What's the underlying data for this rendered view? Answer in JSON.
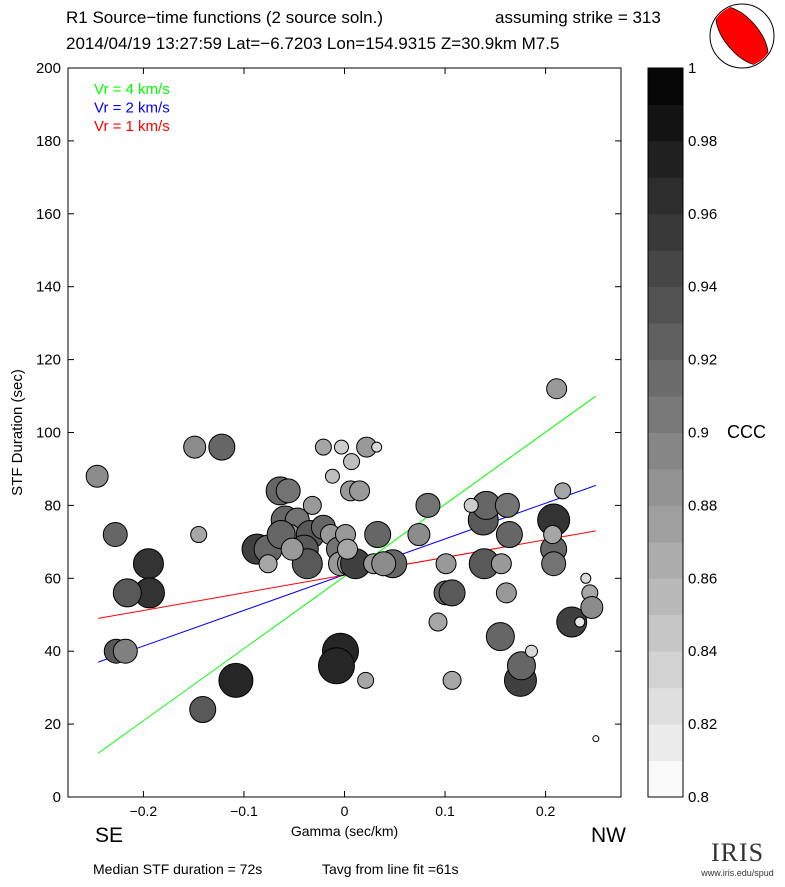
{
  "header": {
    "title": "R1 Source−time functions (2 source soln.)",
    "subtitle": "2014/04/19 13:27:59  Lat=−6.7203 Lon=154.9315  Z=30.9km  M7.5",
    "strike_text": "assuming strike = 313"
  },
  "footer": {
    "median": "Median STF duration = 72s",
    "tavg": "Tavg from line fit =61s",
    "logo_text": "IRIS",
    "logo_url": "www.iris.edu/spud"
  },
  "direction_labels": {
    "left": "SE",
    "right": "NW"
  },
  "colors": {
    "green": "#00ff00",
    "blue": "#0000ff",
    "red": "#ff0000",
    "beachball": "#ff0000"
  },
  "chart_data": {
    "type": "scatter",
    "xlabel": "Gamma (sec/km)",
    "ylabel": "STF Duration (sec)",
    "xlim": [
      -0.275,
      0.275
    ],
    "ylim": [
      0,
      200
    ],
    "xticks": [
      -0.2,
      -0.1,
      0,
      0.1,
      0.2
    ],
    "xtick_labels": [
      "−0.2",
      "−0.1",
      "0",
      "0.1",
      "0.2"
    ],
    "yticks": [
      0,
      20,
      40,
      60,
      80,
      100,
      120,
      140,
      160,
      180,
      200
    ],
    "ytick_labels": [
      "0",
      "20",
      "40",
      "60",
      "80",
      "100",
      "120",
      "140",
      "160",
      "180",
      "200"
    ],
    "legend": [
      {
        "label": "Vr = 4 km/s",
        "color": "#00ff00"
      },
      {
        "label": "Vr = 2 km/s",
        "color": "#0000ff"
      },
      {
        "label": "Vr = 1 km/s",
        "color": "#ff0000"
      }
    ],
    "legend_position": "top-left",
    "lines": [
      {
        "name": "Vr = 4 km/s",
        "color": "#00ff00",
        "x": [
          -0.245,
          0.25
        ],
        "y": [
          12,
          110
        ]
      },
      {
        "name": "Vr = 2 km/s",
        "color": "#0000ff",
        "x": [
          -0.245,
          0.25
        ],
        "y": [
          37,
          85.5
        ]
      },
      {
        "name": "Vr = 1 km/s",
        "color": "#ff0000",
        "x": [
          -0.245,
          0.25
        ],
        "y": [
          49,
          73
        ]
      }
    ],
    "colorbar": {
      "label": "CCC",
      "range": [
        0.8,
        1
      ],
      "ticks": [
        "0.8",
        "0.82",
        "0.84",
        "0.86",
        "0.88",
        "0.9",
        "0.92",
        "0.94",
        "0.96",
        "0.98",
        "1"
      ],
      "steps": 20
    },
    "points_fields": [
      "gamma",
      "duration",
      "ccc",
      "marker_size"
    ],
    "points": [
      [
        -0.246,
        88,
        0.89,
        11
      ],
      [
        -0.149,
        96,
        0.89,
        11
      ],
      [
        -0.122,
        96,
        0.92,
        13
      ],
      [
        -0.228,
        72,
        0.92,
        12
      ],
      [
        -0.145,
        72,
        0.87,
        8
      ],
      [
        -0.195,
        64,
        0.96,
        15
      ],
      [
        -0.194,
        56,
        0.96,
        15
      ],
      [
        -0.216,
        56,
        0.93,
        14
      ],
      [
        -0.227,
        40,
        0.93,
        12
      ],
      [
        -0.218,
        40,
        0.9,
        12
      ],
      [
        -0.141,
        24,
        0.93,
        13
      ],
      [
        -0.108,
        32,
        0.97,
        17
      ],
      [
        -0.004,
        40,
        0.97,
        18
      ],
      [
        -0.008,
        36,
        0.97,
        18
      ],
      [
        0.021,
        32,
        0.87,
        8
      ],
      [
        -0.064,
        84,
        0.92,
        14
      ],
      [
        -0.056,
        84,
        0.91,
        12
      ],
      [
        -0.032,
        80,
        0.88,
        9
      ],
      [
        -0.087,
        68,
        0.95,
        15
      ],
      [
        -0.076,
        68,
        0.92,
        14
      ],
      [
        -0.059,
        76,
        0.92,
        14
      ],
      [
        -0.047,
        76,
        0.91,
        12
      ],
      [
        -0.054,
        72,
        0.88,
        10
      ],
      [
        -0.063,
        72,
        0.92,
        14
      ],
      [
        -0.034,
        72,
        0.93,
        14
      ],
      [
        -0.04,
        68,
        0.93,
        14
      ],
      [
        -0.021,
        74,
        0.92,
        12
      ],
      [
        -0.037,
        64,
        0.93,
        15
      ],
      [
        -0.076,
        64,
        0.87,
        9
      ],
      [
        -0.052,
        68,
        0.88,
        11
      ],
      [
        -0.014,
        72,
        0.88,
        10
      ],
      [
        -0.006,
        68,
        0.91,
        12
      ],
      [
        -0.004,
        64,
        0.88,
        12
      ],
      [
        0.001,
        72,
        0.88,
        10
      ],
      [
        0.005,
        64,
        0.88,
        12
      ],
      [
        0.011,
        64,
        0.95,
        15
      ],
      [
        0.003,
        68,
        0.87,
        10
      ],
      [
        -0.021,
        96,
        0.87,
        8
      ],
      [
        -0.003,
        96,
        0.84,
        7
      ],
      [
        -0.012,
        88,
        0.85,
        7
      ],
      [
        0.007,
        92,
        0.85,
        8
      ],
      [
        0.006,
        84,
        0.88,
        10
      ],
      [
        0.015,
        84,
        0.88,
        10
      ],
      [
        0.022,
        96,
        0.88,
        10
      ],
      [
        0.032,
        96,
        0.83,
        5
      ],
      [
        0.033,
        72,
        0.92,
        13
      ],
      [
        0.029,
        64,
        0.88,
        10
      ],
      [
        0.048,
        64,
        0.92,
        14
      ],
      [
        0.039,
        64,
        0.89,
        12
      ],
      [
        0.083,
        80,
        0.91,
        12
      ],
      [
        0.074,
        72,
        0.89,
        11
      ],
      [
        0.101,
        64,
        0.88,
        10
      ],
      [
        0.101,
        56,
        0.92,
        12
      ],
      [
        0.107,
        56,
        0.93,
        13
      ],
      [
        0.093,
        48,
        0.87,
        9
      ],
      [
        0.107,
        32,
        0.87,
        9
      ],
      [
        0.138,
        76,
        0.93,
        15
      ],
      [
        0.141,
        80,
        0.92,
        14
      ],
      [
        0.126,
        80,
        0.84,
        7
      ],
      [
        0.162,
        80,
        0.91,
        12
      ],
      [
        0.164,
        72,
        0.92,
        13
      ],
      [
        0.139,
        64,
        0.93,
        15
      ],
      [
        0.156,
        64,
        0.88,
        10
      ],
      [
        0.161,
        56,
        0.88,
        10
      ],
      [
        0.155,
        44,
        0.92,
        14
      ],
      [
        0.175,
        32,
        0.95,
        16
      ],
      [
        0.176,
        36,
        0.92,
        14
      ],
      [
        0.186,
        40,
        0.83,
        6
      ],
      [
        0.211,
        112,
        0.88,
        10
      ],
      [
        0.217,
        84,
        0.87,
        8
      ],
      [
        0.208,
        76,
        0.96,
        16
      ],
      [
        0.208,
        68,
        0.92,
        13
      ],
      [
        0.208,
        64,
        0.91,
        12
      ],
      [
        0.207,
        72,
        0.87,
        9
      ],
      [
        0.24,
        60,
        0.83,
        5
      ],
      [
        0.244,
        56,
        0.87,
        8
      ],
      [
        0.226,
        48,
        0.95,
        15
      ],
      [
        0.246,
        52,
        0.89,
        11
      ],
      [
        0.234,
        48,
        0.82,
        5
      ],
      [
        0.25,
        16,
        0.8,
        3
      ]
    ]
  }
}
